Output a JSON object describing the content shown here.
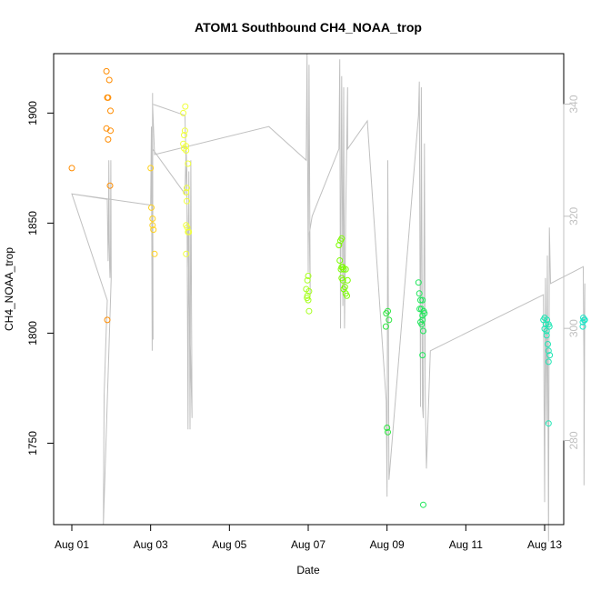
{
  "chart_data": {
    "type": "scatter",
    "title": "ATOM1 Southbound CH4_NOAA_trop",
    "xlabel": "Date",
    "ylabel": "CH4_NOAA_trop",
    "xlim": [
      0.0,
      12.5
    ],
    "ylim": [
      1713,
      1927
    ],
    "x_ticks": [
      {
        "value": 0,
        "label": "Aug 01"
      },
      {
        "value": 2,
        "label": "Aug 03"
      },
      {
        "value": 4,
        "label": "Aug 05"
      },
      {
        "value": 6,
        "label": "Aug 07"
      },
      {
        "value": 8,
        "label": "Aug 09"
      },
      {
        "value": 10,
        "label": "Aug 11"
      },
      {
        "value": 12,
        "label": "Aug 13"
      }
    ],
    "y_ticks": [
      1750,
      1800,
      1850,
      1900
    ],
    "y2_range": [
      265,
      349
    ],
    "y2_ticks": [
      280,
      300,
      320,
      340
    ],
    "points_color_note": "color varies from orange (early) to cyan (late)",
    "series": [
      {
        "name": "CH4_NOAA_trop",
        "color": "#FF8C00",
        "points": [
          [
            0.0,
            1875
          ],
          [
            0.88,
            1919
          ],
          [
            0.9,
            1907
          ],
          [
            0.92,
            1907
          ],
          [
            0.95,
            1915
          ],
          [
            0.88,
            1893
          ],
          [
            0.92,
            1888
          ],
          [
            0.98,
            1901
          ],
          [
            0.98,
            1892
          ],
          [
            0.97,
            1867
          ],
          [
            0.9,
            1806
          ]
        ]
      },
      {
        "name": "CH4_NOAA_trop",
        "color": "#FFD21F",
        "points": [
          [
            2.0,
            1875
          ],
          [
            2.02,
            1857
          ],
          [
            2.05,
            1852
          ],
          [
            2.07,
            1847
          ],
          [
            2.1,
            1836
          ],
          [
            2.05,
            1849
          ]
        ]
      },
      {
        "name": "CH4_NOAA_trop",
        "color": "#F0FF3C",
        "points": [
          [
            2.83,
            1900
          ],
          [
            2.88,
            1903
          ],
          [
            2.85,
            1890
          ],
          [
            2.87,
            1892
          ],
          [
            2.9,
            1885
          ],
          [
            2.83,
            1886
          ],
          [
            2.85,
            1884
          ],
          [
            2.9,
            1883
          ],
          [
            2.92,
            1866
          ],
          [
            2.95,
            1877
          ],
          [
            2.9,
            1864
          ],
          [
            2.92,
            1860
          ],
          [
            2.9,
            1849
          ],
          [
            2.93,
            1848
          ],
          [
            2.95,
            1846
          ],
          [
            2.97,
            1846
          ],
          [
            2.9,
            1836
          ]
        ]
      },
      {
        "name": "CH4_NOAA_trop",
        "color": "#A6FF1E",
        "points": [
          [
            5.95,
            1820
          ],
          [
            5.98,
            1824
          ],
          [
            6.0,
            1826
          ],
          [
            6.02,
            1819
          ],
          [
            5.97,
            1816
          ],
          [
            6.0,
            1815
          ],
          [
            6.02,
            1810
          ],
          [
            5.98,
            1817
          ]
        ]
      },
      {
        "name": "CH4_NOAA_trop",
        "color": "#7CFC00",
        "points": [
          [
            6.78,
            1840
          ],
          [
            6.82,
            1842
          ],
          [
            6.85,
            1843
          ],
          [
            6.8,
            1833
          ],
          [
            6.83,
            1829
          ],
          [
            6.85,
            1830
          ],
          [
            6.9,
            1829
          ],
          [
            6.95,
            1829
          ],
          [
            6.85,
            1825
          ],
          [
            6.88,
            1824
          ],
          [
            6.9,
            1820
          ],
          [
            6.93,
            1821
          ],
          [
            6.95,
            1818
          ],
          [
            6.98,
            1817
          ],
          [
            7.0,
            1824
          ],
          [
            6.88,
            1830
          ]
        ]
      },
      {
        "name": "CH4_NOAA_trop",
        "color": "#2EE640",
        "points": [
          [
            7.98,
            1809
          ],
          [
            8.02,
            1810
          ],
          [
            8.05,
            1806
          ],
          [
            7.97,
            1803
          ],
          [
            8.0,
            1757
          ],
          [
            8.02,
            1755
          ]
        ]
      },
      {
        "name": "CH4_NOAA_trop",
        "color": "#1EE65A",
        "points": [
          [
            8.8,
            1823
          ],
          [
            8.82,
            1818
          ],
          [
            8.85,
            1815
          ],
          [
            8.9,
            1815
          ],
          [
            8.83,
            1811
          ],
          [
            8.87,
            1811
          ],
          [
            8.9,
            1808
          ],
          [
            8.93,
            1810
          ],
          [
            8.95,
            1809
          ],
          [
            8.85,
            1805
          ],
          [
            8.9,
            1806
          ],
          [
            8.92,
            1801
          ],
          [
            8.9,
            1790
          ],
          [
            8.92,
            1722
          ],
          [
            8.88,
            1804
          ]
        ]
      },
      {
        "name": "CH4_NOAA_trop",
        "color": "#1EE6B4",
        "points": [
          [
            11.97,
            1806
          ],
          [
            12.0,
            1807
          ],
          [
            12.03,
            1804
          ],
          [
            12.06,
            1806
          ],
          [
            12.1,
            1804
          ],
          [
            12.12,
            1803
          ],
          [
            12.0,
            1802
          ],
          [
            12.05,
            1799
          ],
          [
            12.08,
            1795
          ],
          [
            12.1,
            1792
          ],
          [
            12.13,
            1790
          ],
          [
            12.1,
            1787
          ],
          [
            12.1,
            1759
          ],
          [
            12.05,
            1801
          ]
        ]
      },
      {
        "name": "CH4_NOAA_trop",
        "color": "#1EE6C8",
        "points": [
          [
            12.97,
            1805
          ],
          [
            13.0,
            1806
          ],
          [
            12.98,
            1807
          ],
          [
            13.02,
            1806
          ],
          [
            12.97,
            1803
          ]
        ]
      }
    ],
    "altitude_line": {
      "name": "secondary axis trace",
      "color": "#c0c0c0",
      "points": [
        [
          0.0,
          324
        ],
        [
          0.9,
          323
        ],
        [
          0.92,
          312
        ],
        [
          0.93,
          316
        ],
        [
          0.94,
          330
        ],
        [
          0.95,
          316
        ],
        [
          0.96,
          311
        ],
        [
          0.97,
          309
        ],
        [
          0.98,
          312
        ],
        [
          0.99,
          330
        ],
        [
          1.0,
          309
        ],
        [
          0.8,
          265
        ],
        [
          0.82,
          288
        ],
        [
          0.88,
          301
        ],
        [
          0.9,
          305
        ],
        [
          0.0,
          324
        ],
        [
          2.0,
          322
        ],
        [
          2.02,
          336
        ],
        [
          2.04,
          296
        ],
        [
          2.05,
          342
        ],
        [
          2.06,
          298
        ],
        [
          2.05,
          332
        ],
        [
          2.87,
          324
        ],
        [
          2.9,
          332
        ],
        [
          2.92,
          328
        ],
        [
          2.95,
          282
        ],
        [
          2.97,
          328
        ],
        [
          3.0,
          282
        ],
        [
          3.02,
          330
        ],
        [
          3.05,
          284
        ],
        [
          2.87,
          338
        ],
        [
          2.05,
          340
        ],
        [
          2.1,
          331
        ],
        [
          5.0,
          336
        ],
        [
          5.95,
          330
        ],
        [
          5.97,
          349
        ],
        [
          6.0,
          310
        ],
        [
          6.02,
          347
        ],
        [
          6.05,
          306
        ],
        [
          6.03,
          317
        ],
        [
          6.1,
          320
        ],
        [
          6.78,
          332
        ],
        [
          6.8,
          348
        ],
        [
          6.82,
          300
        ],
        [
          6.85,
          345
        ],
        [
          6.88,
          304
        ],
        [
          6.9,
          343
        ],
        [
          6.92,
          300
        ],
        [
          6.95,
          320
        ],
        [
          7.0,
          343
        ],
        [
          7.0,
          332
        ],
        [
          7.5,
          337
        ],
        [
          7.98,
          287
        ],
        [
          8.0,
          270
        ],
        [
          8.02,
          330
        ],
        [
          8.05,
          273
        ],
        [
          8.8,
          338
        ],
        [
          8.82,
          344
        ],
        [
          8.85,
          286
        ],
        [
          8.87,
          343
        ],
        [
          8.9,
          286
        ],
        [
          8.92,
          284
        ],
        [
          8.95,
          333
        ],
        [
          8.97,
          288
        ],
        [
          9.0,
          275
        ],
        [
          9.1,
          296
        ],
        [
          11.97,
          306
        ],
        [
          12.0,
          269
        ],
        [
          12.02,
          309
        ],
        [
          12.05,
          283
        ],
        [
          12.07,
          313
        ],
        [
          12.1,
          262
        ],
        [
          12.12,
          318
        ],
        [
          12.15,
          308
        ],
        [
          12.98,
          311
        ],
        [
          13.0,
          292
        ],
        [
          13.02,
          308
        ],
        [
          13.0,
          272
        ],
        [
          13.0,
          297
        ]
      ]
    }
  }
}
